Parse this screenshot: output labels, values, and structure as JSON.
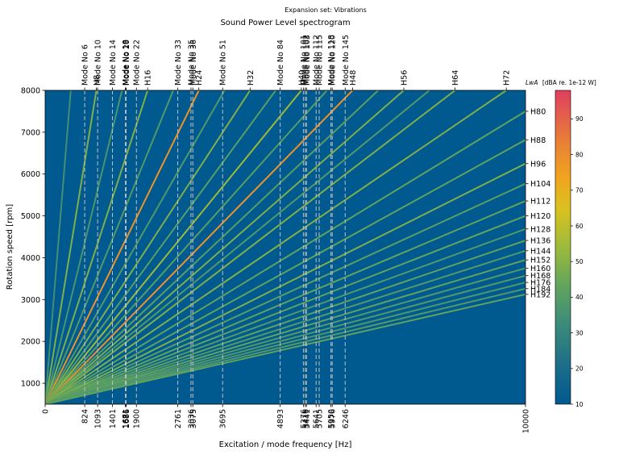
{
  "chart_data": {
    "type": "heatmap",
    "suptitle": "Expansion set: Vibrations",
    "title": "Sound Power Level spectrogram",
    "xlabel": "Excitation / mode frequency [Hz]",
    "ylabel": "Rotation speed [rpm]",
    "xlim": [
      0,
      10000
    ],
    "ylim": [
      500,
      8000
    ],
    "x_ticks": [
      0,
      10000
    ],
    "y_ticks": [
      1000,
      2000,
      3000,
      4000,
      5000,
      6000,
      7000,
      8000
    ],
    "background_color": "#00598f",
    "modes": [
      {
        "name": "Mode No 6",
        "freq": 824
      },
      {
        "name": "Mode No 10",
        "freq": 1093
      },
      {
        "name": "Mode No 14",
        "freq": 1401
      },
      {
        "name": "Mode No 18",
        "freq": 1671
      },
      {
        "name": "Mode No 19",
        "freq": 1681
      },
      {
        "name": "Mode No 20",
        "freq": 1686
      },
      {
        "name": "Mode No 22",
        "freq": 1900
      },
      {
        "name": "Mode No 33",
        "freq": 2761
      },
      {
        "name": "Mode No 35",
        "freq": 3036
      },
      {
        "name": "Mode No 36",
        "freq": 3075
      },
      {
        "name": "Mode No 51",
        "freq": 3695
      },
      {
        "name": "Mode No 84",
        "freq": 4893
      },
      {
        "name": "Mode No 101",
        "freq": 5376
      },
      {
        "name": "Mode No 102",
        "freq": 5416
      },
      {
        "name": "Mode No 103",
        "freq": 5441
      },
      {
        "name": "Mode No 112",
        "freq": 5641
      },
      {
        "name": "Mode No 115",
        "freq": 5705
      },
      {
        "name": "Mode No 118",
        "freq": 5950
      },
      {
        "name": "Mode No 120",
        "freq": 5976
      },
      {
        "name": "Mode No 145",
        "freq": 6246
      }
    ],
    "mode_tick_labels": [
      "824",
      "1093",
      "1401",
      "1671",
      "1681",
      "1686",
      "1900",
      "2761",
      "3036",
      "3075",
      "3695",
      "4893",
      "5376",
      "5416",
      "5441",
      "5641",
      "5705",
      "5950",
      "5976",
      "6246"
    ],
    "harmonics_top": [
      {
        "label": "H8",
        "h": 8,
        "level": 45
      },
      {
        "label": "H16",
        "h": 16,
        "level": 45
      },
      {
        "label": "H24",
        "h": 24,
        "level": 75
      },
      {
        "label": "H32",
        "h": 32,
        "level": 45
      },
      {
        "label": "H40",
        "h": 40,
        "level": 50
      },
      {
        "label": "H48",
        "h": 48,
        "level": 75
      },
      {
        "label": "H56",
        "h": 56,
        "level": 45
      },
      {
        "label": "H64",
        "h": 64,
        "level": 45
      },
      {
        "label": "H72",
        "h": 72,
        "level": 45
      }
    ],
    "harmonics_right": [
      {
        "label": "H80",
        "h": 80,
        "level": 40
      },
      {
        "label": "H88",
        "h": 88,
        "level": 40
      },
      {
        "label": "H96",
        "h": 96,
        "level": 45
      },
      {
        "label": "H104",
        "h": 104,
        "level": 38
      },
      {
        "label": "H112",
        "h": 112,
        "level": 40
      },
      {
        "label": "H120",
        "h": 120,
        "level": 40
      },
      {
        "label": "H128",
        "h": 128,
        "level": 36
      },
      {
        "label": "H136",
        "h": 136,
        "level": 40
      },
      {
        "label": "H144",
        "h": 144,
        "level": 36
      },
      {
        "label": "H152",
        "h": 152,
        "level": 40
      },
      {
        "label": "H160",
        "h": 160,
        "level": 36
      },
      {
        "label": "H168",
        "h": 168,
        "level": 36
      },
      {
        "label": "H176",
        "h": 176,
        "level": 35
      },
      {
        "label": "H184",
        "h": 184,
        "level": 36
      },
      {
        "label": "H192",
        "h": 192,
        "level": 40
      }
    ],
    "unlabeled_harmonics": [
      {
        "h": 4,
        "level": 32
      },
      {
        "h": 12,
        "level": 34
      },
      {
        "h": 20,
        "level": 36
      },
      {
        "h": 28,
        "level": 36
      },
      {
        "h": 36,
        "level": 38
      },
      {
        "h": 44,
        "level": 38
      },
      {
        "h": 52,
        "level": 38
      },
      {
        "h": 60,
        "level": 36
      }
    ],
    "colorbar": {
      "label_var": "LwA",
      "label_unit": "[dBA re. 1e-12 W]",
      "min": 10,
      "max": 98,
      "ticks": [
        10,
        20,
        30,
        40,
        50,
        60,
        70,
        80,
        90
      ]
    }
  }
}
